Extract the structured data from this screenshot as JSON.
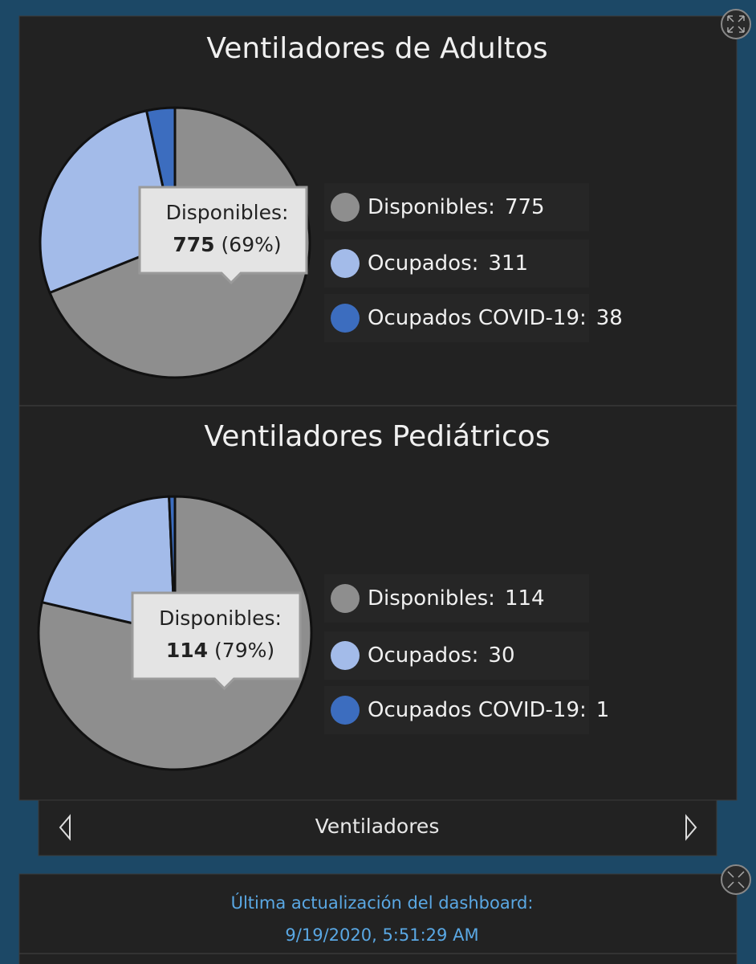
{
  "chart_data": [
    {
      "type": "pie",
      "title": "Ventiladores de Adultos",
      "categories": [
        "Disponibles:",
        "Ocupados:",
        "Ocupados COVID-19:"
      ],
      "values": [
        775,
        311,
        38
      ],
      "colors": [
        "#8e8e8e",
        "#a3bbe9",
        "#3c6dbf"
      ],
      "tooltip": {
        "label": "Disponibles:",
        "value": 775,
        "share": {
          "value": 69,
          "label": "(69%)"
        }
      }
    },
    {
      "type": "pie",
      "title": "Ventiladores Pediátricos",
      "categories": [
        "Disponibles:",
        "Ocupados:",
        "Ocupados COVID-19:"
      ],
      "values": [
        114,
        30,
        1
      ],
      "colors": [
        "#8e8e8e",
        "#a3bbe9",
        "#3c6dbf"
      ],
      "tooltip": {
        "label": "Disponibles:",
        "value": 114,
        "share": {
          "value": 79,
          "label": "(79%)"
        }
      }
    }
  ],
  "nav": {
    "label": "Ventiladores"
  },
  "footer": {
    "line1": "Última actualización del dashboard:",
    "line2": "9/19/2020, 5:51:29 AM"
  }
}
